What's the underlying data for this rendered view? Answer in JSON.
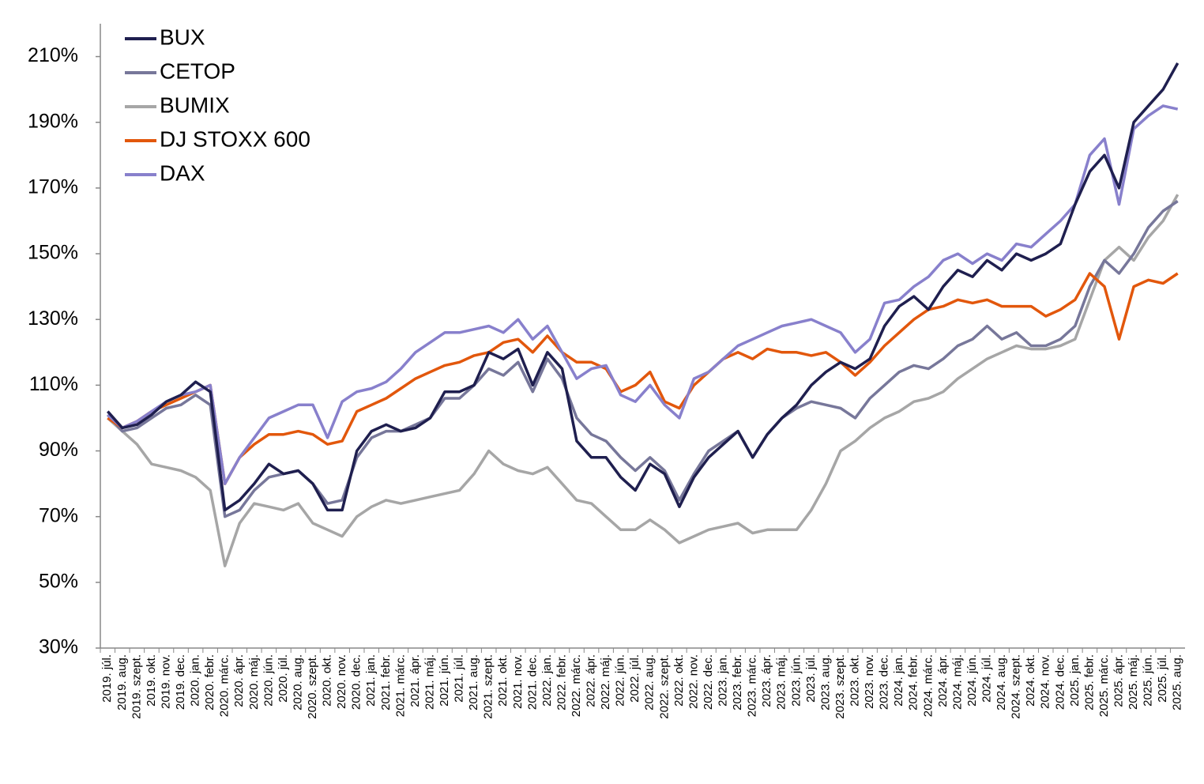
{
  "chart_data": {
    "type": "line",
    "categories": [
      "2019. júl.",
      "2019. aug.",
      "2019. szept.",
      "2019. okt.",
      "2019. nov.",
      "2019. dec.",
      "2020. jan.",
      "2020. febr.",
      "2020. márc.",
      "2020. ápr.",
      "2020. máj.",
      "2020. jún.",
      "2020. júl.",
      "2020. aug.",
      "2020. szept.",
      "2020. okt.",
      "2020. nov.",
      "2020. dec.",
      "2021. jan.",
      "2021. febr.",
      "2021. márc.",
      "2021. ápr.",
      "2021. máj.",
      "2021. jún.",
      "2021. júl.",
      "2021. aug.",
      "2021. szept.",
      "2021. okt.",
      "2021. nov.",
      "2021. dec.",
      "2022. jan.",
      "2022. febr.",
      "2022. márc.",
      "2022. ápr.",
      "2022. máj.",
      "2022. jún.",
      "2022. júl.",
      "2022. aug.",
      "2022. szept.",
      "2022. okt.",
      "2022. nov.",
      "2022. dec.",
      "2023. jan.",
      "2023. febr.",
      "2023. márc.",
      "2023. ápr.",
      "2023. máj.",
      "2023. jún.",
      "2023. júl.",
      "2023. aug.",
      "2023. szept.",
      "2023. okt.",
      "2023. nov.",
      "2023. dec.",
      "2024. jan.",
      "2024. febr.",
      "2024. márc.",
      "2024. ápr.",
      "2024. máj.",
      "2024. jún.",
      "2024. júl.",
      "2024. aug.",
      "2024. szept.",
      "2024. okt.",
      "2024. nov.",
      "2024. dec.",
      "2025. jan.",
      "2025. febr.",
      "2025. márc.",
      "2025. ápr.",
      "2025. máj.",
      "2025. jún.",
      "2025. júl.",
      "2025. aug."
    ],
    "series": [
      {
        "name": "BUMIX",
        "color": "#a6a6a6",
        "values": [
          100,
          96,
          92,
          86,
          85,
          84,
          82,
          78,
          55,
          68,
          74,
          73,
          72,
          74,
          68,
          66,
          64,
          70,
          73,
          75,
          74,
          75,
          76,
          77,
          78,
          83,
          90,
          86,
          84,
          83,
          85,
          80,
          75,
          74,
          70,
          66,
          66,
          69,
          66,
          62,
          64,
          66,
          67,
          68,
          65,
          66,
          66,
          66,
          72,
          80,
          90,
          93,
          97,
          100,
          102,
          105,
          106,
          108,
          112,
          115,
          118,
          120,
          122,
          121,
          121,
          122,
          124,
          136,
          148,
          152,
          148,
          155,
          160,
          168
        ]
      },
      {
        "name": "CETOP",
        "color": "#77779a",
        "values": [
          101,
          96,
          97,
          100,
          103,
          104,
          107,
          104,
          70,
          72,
          78,
          82,
          83,
          84,
          80,
          74,
          75,
          88,
          94,
          96,
          96,
          98,
          100,
          106,
          106,
          110,
          115,
          113,
          117,
          108,
          118,
          112,
          100,
          95,
          93,
          88,
          84,
          88,
          84,
          75,
          83,
          90,
          93,
          96,
          88,
          95,
          100,
          103,
          105,
          104,
          103,
          100,
          106,
          110,
          114,
          116,
          115,
          118,
          122,
          124,
          128,
          124,
          126,
          122,
          122,
          124,
          128,
          140,
          148,
          144,
          150,
          158,
          163,
          166
        ]
      },
      {
        "name": "DJ STOXX 600",
        "color": "#e2570c",
        "values": [
          100,
          97,
          99,
          102,
          104,
          106,
          108,
          110,
          80,
          88,
          92,
          95,
          95,
          96,
          95,
          92,
          93,
          102,
          104,
          106,
          109,
          112,
          114,
          116,
          117,
          119,
          120,
          123,
          124,
          120,
          125,
          120,
          117,
          117,
          115,
          108,
          110,
          114,
          105,
          103,
          110,
          114,
          118,
          120,
          118,
          121,
          120,
          120,
          119,
          120,
          117,
          113,
          117,
          122,
          126,
          130,
          133,
          134,
          136,
          135,
          136,
          134,
          134,
          134,
          131,
          133,
          136,
          144,
          140,
          124,
          140,
          142,
          141,
          144
        ]
      },
      {
        "name": "DAX",
        "color": "#8880cc",
        "values": [
          101,
          97,
          99,
          102,
          105,
          107,
          108,
          110,
          80,
          88,
          94,
          100,
          102,
          104,
          104,
          94,
          105,
          108,
          109,
          111,
          115,
          120,
          123,
          126,
          126,
          127,
          128,
          126,
          130,
          124,
          128,
          120,
          112,
          115,
          116,
          107,
          105,
          110,
          104,
          100,
          112,
          114,
          118,
          122,
          124,
          126,
          128,
          129,
          130,
          128,
          126,
          120,
          124,
          135,
          136,
          140,
          143,
          148,
          150,
          147,
          150,
          148,
          153,
          152,
          156,
          160,
          165,
          180,
          185,
          165,
          188,
          192,
          195,
          194
        ]
      },
      {
        "name": "BUX",
        "color": "#1f1f4f",
        "values": [
          102,
          97,
          98,
          101,
          105,
          107,
          111,
          108,
          72,
          75,
          80,
          86,
          83,
          84,
          80,
          72,
          72,
          90,
          96,
          98,
          96,
          97,
          100,
          108,
          108,
          110,
          120,
          118,
          121,
          110,
          120,
          115,
          93,
          88,
          88,
          82,
          78,
          86,
          83,
          73,
          82,
          88,
          92,
          96,
          88,
          95,
          100,
          104,
          110,
          114,
          117,
          115,
          118,
          128,
          134,
          137,
          133,
          140,
          145,
          143,
          148,
          145,
          150,
          148,
          150,
          153,
          165,
          175,
          180,
          170,
          190,
          195,
          200,
          208
        ]
      }
    ],
    "legend_order": [
      "BUX",
      "CETOP",
      "BUMIX",
      "DJ STOXX 600",
      "DAX"
    ],
    "ylim": [
      30,
      220
    ],
    "yticks": [
      {
        "value": 30,
        "label": "30%"
      },
      {
        "value": 50,
        "label": "50%"
      },
      {
        "value": 70,
        "label": "70%"
      },
      {
        "value": 90,
        "label": "90%"
      },
      {
        "value": 110,
        "label": "110%"
      },
      {
        "value": 130,
        "label": "130%"
      },
      {
        "value": 150,
        "label": "150%"
      },
      {
        "value": 170,
        "label": "170%"
      },
      {
        "value": 190,
        "label": "190%"
      },
      {
        "value": 210,
        "label": "210%"
      }
    ],
    "grid": false
  }
}
